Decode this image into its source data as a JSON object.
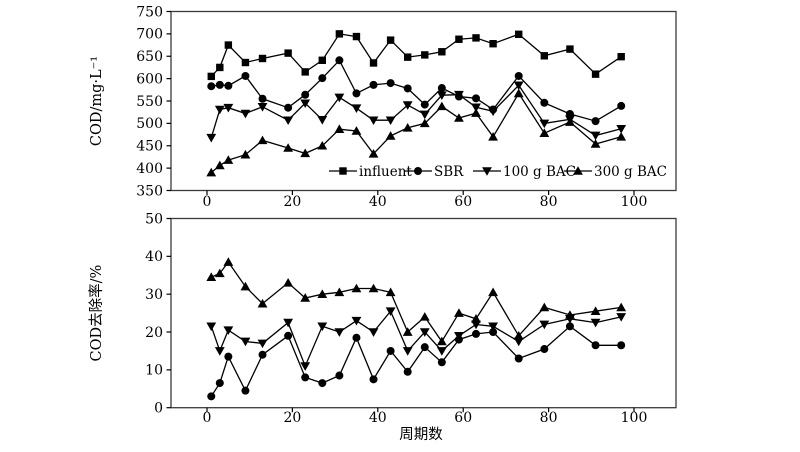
{
  "figure": {
    "background": "#ffffff",
    "foreground": "#000000",
    "frame_color": "#3a3a3a",
    "description": "Two stacked line charts sharing cycle-number x axis"
  },
  "chart_data": [
    {
      "id": "cod-concentration",
      "type": "line",
      "title": "",
      "ylabel": "COD/mg·L⁻¹",
      "xlabel": "",
      "ylim": [
        350,
        750
      ],
      "xlim": [
        0,
        100
      ],
      "y_ticks": [
        350,
        400,
        450,
        500,
        550,
        600,
        650,
        700,
        750
      ],
      "x_ticks": [
        0,
        20,
        40,
        60,
        80,
        100
      ],
      "grid": false,
      "legend_position": "inside-bottom",
      "legend_items": [
        "influent",
        "SBR",
        "100 g BAC",
        "300 g BAC"
      ],
      "x": [
        1,
        3,
        5,
        9,
        13,
        19,
        23,
        27,
        31,
        35,
        39,
        43,
        47,
        51,
        55,
        59,
        63,
        67,
        73,
        79,
        85,
        91,
        97
      ],
      "series": [
        {
          "name": "influent",
          "marker": "square",
          "values": [
            605,
            625,
            675,
            636,
            645,
            657,
            615,
            641,
            700,
            694,
            635,
            686,
            648,
            653,
            660,
            688,
            691,
            678,
            699,
            651,
            666,
            610,
            649
          ]
        },
        {
          "name": "SBR",
          "marker": "circle",
          "values": [
            583,
            586,
            584,
            606,
            555,
            535,
            564,
            601,
            641,
            567,
            586,
            590,
            578,
            542,
            579,
            560,
            556,
            531,
            606,
            546,
            521,
            505,
            539
          ]
        },
        {
          "name": "100 g BAC",
          "marker": "triangle-down",
          "values": [
            468,
            531,
            535,
            522,
            537,
            507,
            545,
            508,
            558,
            534,
            507,
            507,
            541,
            520,
            563,
            564,
            536,
            527,
            585,
            500,
            509,
            473,
            488
          ]
        },
        {
          "name": "300 g BAC",
          "marker": "triangle-up",
          "values": [
            390,
            406,
            418,
            430,
            462,
            445,
            433,
            450,
            487,
            483,
            432,
            472,
            490,
            500,
            538,
            512,
            523,
            470,
            567,
            478,
            503,
            454,
            470
          ]
        }
      ]
    },
    {
      "id": "cod-removal",
      "type": "line",
      "title": "",
      "ylabel": "COD去除率/%",
      "xlabel": "周期数",
      "ylim": [
        0,
        50
      ],
      "xlim": [
        0,
        100
      ],
      "y_ticks": [
        0,
        10,
        20,
        30,
        40,
        50
      ],
      "x_ticks": [
        0,
        20,
        40,
        60,
        80,
        100
      ],
      "grid": false,
      "legend_position": "none",
      "legend_items": [],
      "x": [
        1,
        3,
        5,
        9,
        13,
        19,
        23,
        27,
        31,
        35,
        39,
        43,
        47,
        51,
        55,
        59,
        63,
        67,
        73,
        79,
        85,
        91,
        97
      ],
      "series": [
        {
          "name": "SBR",
          "marker": "circle",
          "values": [
            3,
            6.5,
            13.5,
            4.5,
            14,
            19,
            8,
            6.5,
            8.5,
            18.5,
            7.5,
            15,
            9.5,
            16,
            12,
            18,
            19.5,
            20,
            13,
            15.5,
            21.5,
            16.5,
            16.5
          ]
        },
        {
          "name": "100 g BAC",
          "marker": "triangle-down",
          "values": [
            21.5,
            15,
            20.5,
            17.5,
            17,
            22.5,
            11,
            21.5,
            20,
            23,
            20,
            25.5,
            15,
            20,
            15,
            19,
            22,
            21.5,
            17.5,
            22,
            23.5,
            22.5,
            24
          ]
        },
        {
          "name": "300 g BAC",
          "marker": "triangle-up",
          "values": [
            34.5,
            35.5,
            38.5,
            32,
            27.5,
            33,
            29,
            30,
            30.5,
            31.5,
            31.5,
            30.5,
            20,
            24,
            17.5,
            25,
            23.5,
            30.5,
            19,
            26.5,
            24.5,
            25.5,
            26.5
          ]
        }
      ]
    }
  ]
}
